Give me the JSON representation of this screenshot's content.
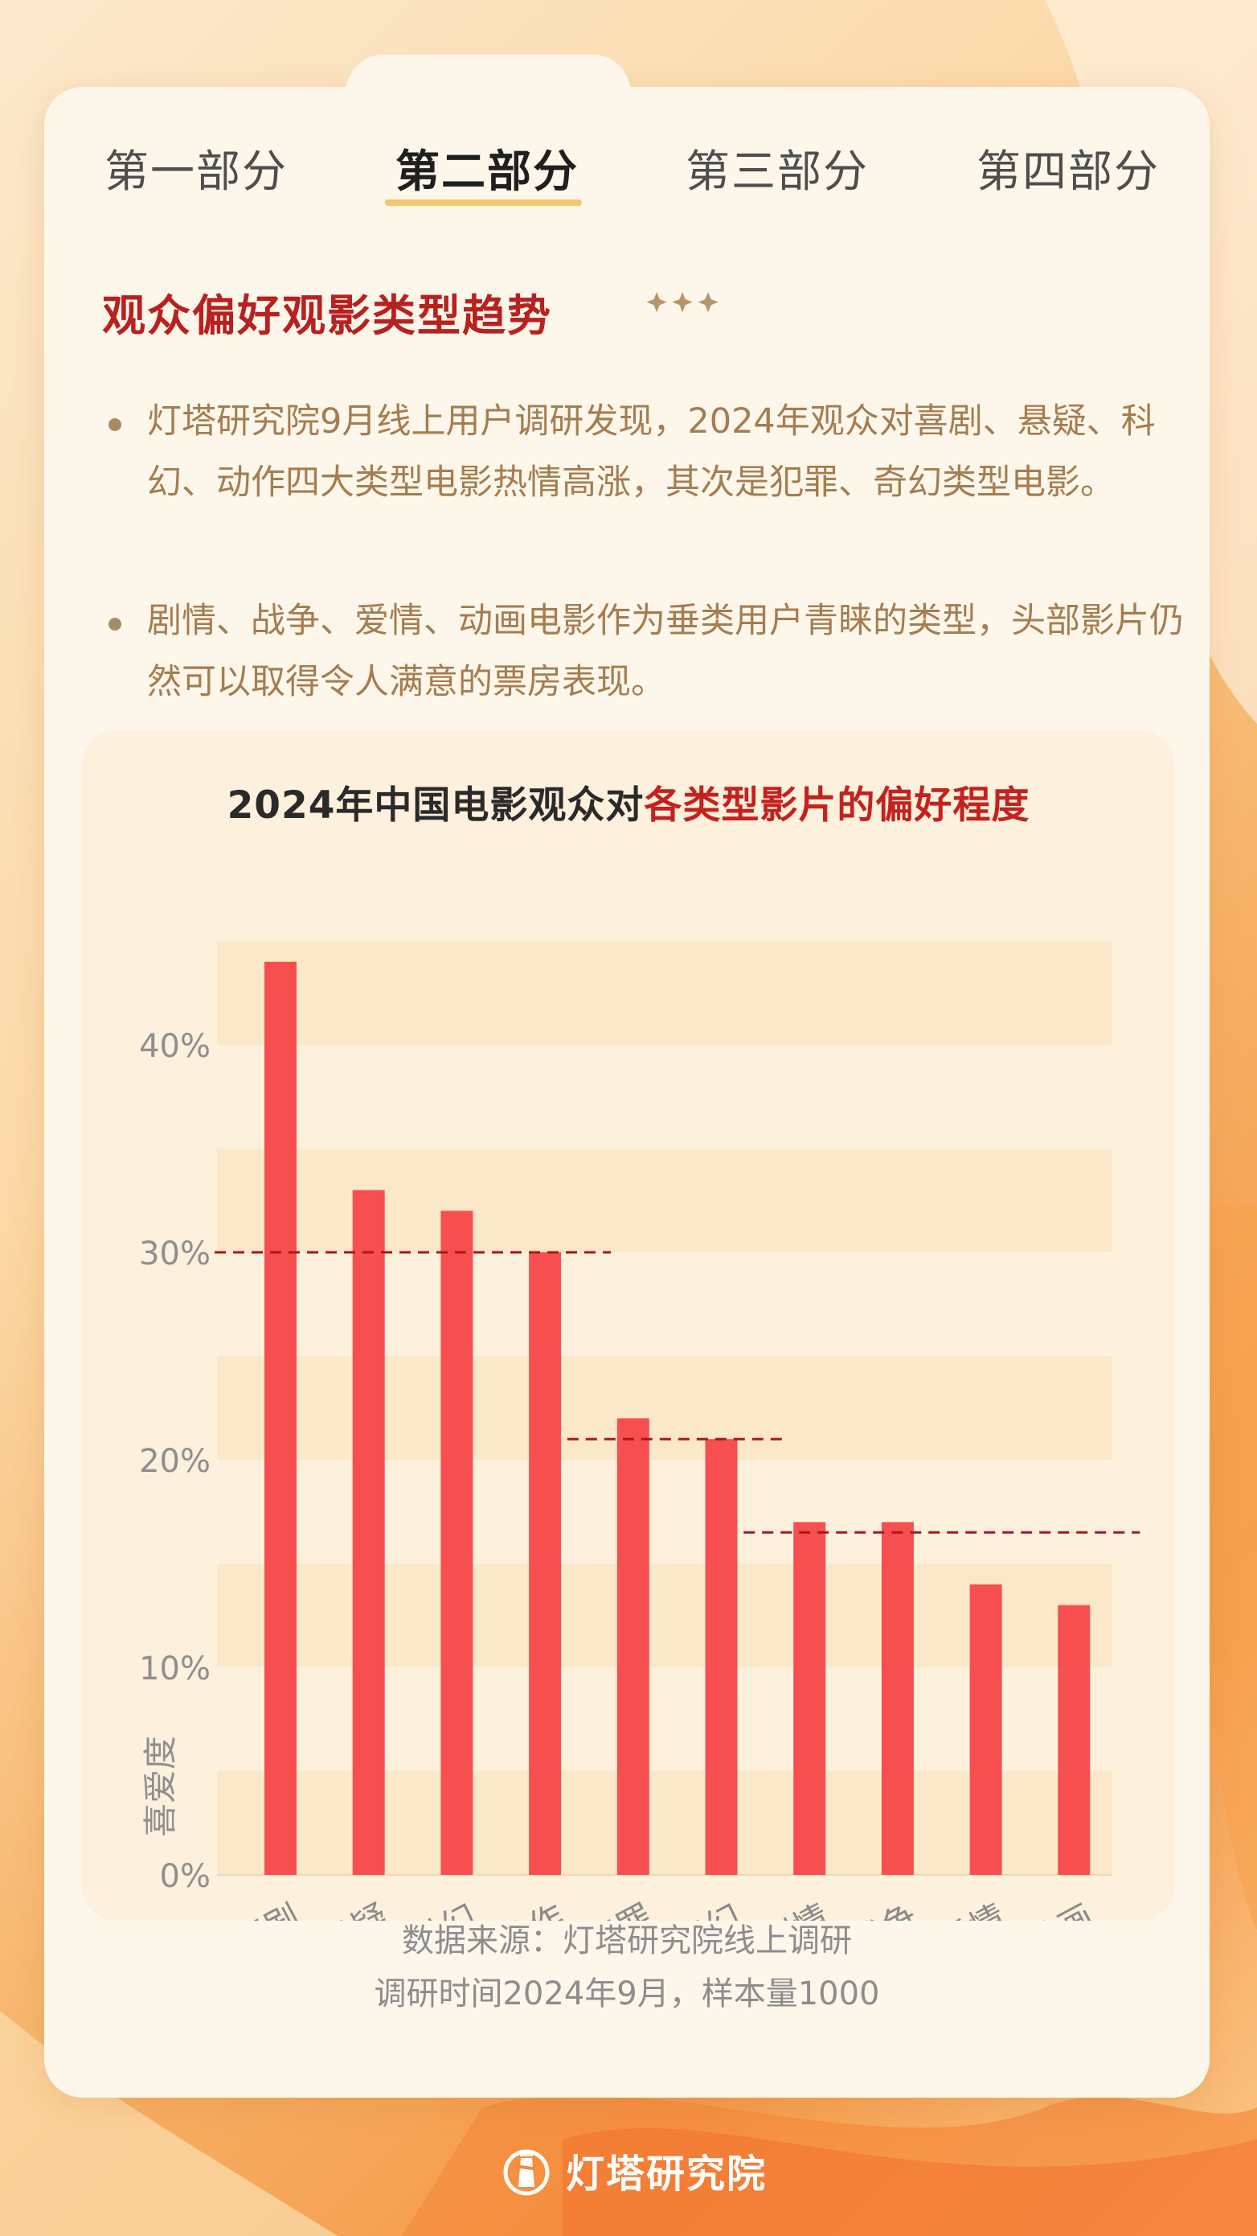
{
  "tabs": [
    {
      "label": "第一部分"
    },
    {
      "label": "第二部分"
    },
    {
      "label": "第三部分"
    },
    {
      "label": "第四部分"
    }
  ],
  "section": {
    "title": "观众偏好观影类型趋势",
    "bullets": [
      "灯塔研究院9月线上用户调研发现，2024年观众对喜剧、悬疑、科幻、动作四大类型电影热情高涨，其次是犯罪、奇幻类型电影。",
      "剧情、战争、爱情、动画电影作为垂类用户青睐的类型，头部影片仍然可以取得令人满意的票房表现。"
    ]
  },
  "chart_data": {
    "type": "bar",
    "title_prefix": "2024年中国电影观众对",
    "title_highlight": "各类型影片的偏好程度",
    "ylabel": "喜爱度",
    "categories": [
      "喜剧",
      "悬疑",
      "科幻",
      "动作",
      "犯罪",
      "奇幻",
      "剧情",
      "战争",
      "爱情",
      "动画"
    ],
    "values": [
      44,
      33,
      32,
      30,
      22,
      21,
      17,
      17,
      14,
      13
    ],
    "yticks": [
      "0%",
      "10%",
      "20%",
      "30%",
      "40%"
    ],
    "ylim": [
      0,
      45
    ],
    "grid": false,
    "reference_lines": [
      {
        "value": 30,
        "from": "喜剧",
        "to": "动作"
      },
      {
        "value": 21,
        "from": "犯罪",
        "to": "奇幻"
      },
      {
        "value": 16.5,
        "from": "剧情",
        "to": "动画"
      }
    ],
    "bar_color": "#f74f4f",
    "band_color": "#fbe8c8",
    "ref_line_color": "#a8171d"
  },
  "source": {
    "line1": "数据来源：灯塔研究院线上调研",
    "line2": "调研时间2024年9月，样本量1000"
  },
  "brand": {
    "name": "灯塔研究院"
  }
}
